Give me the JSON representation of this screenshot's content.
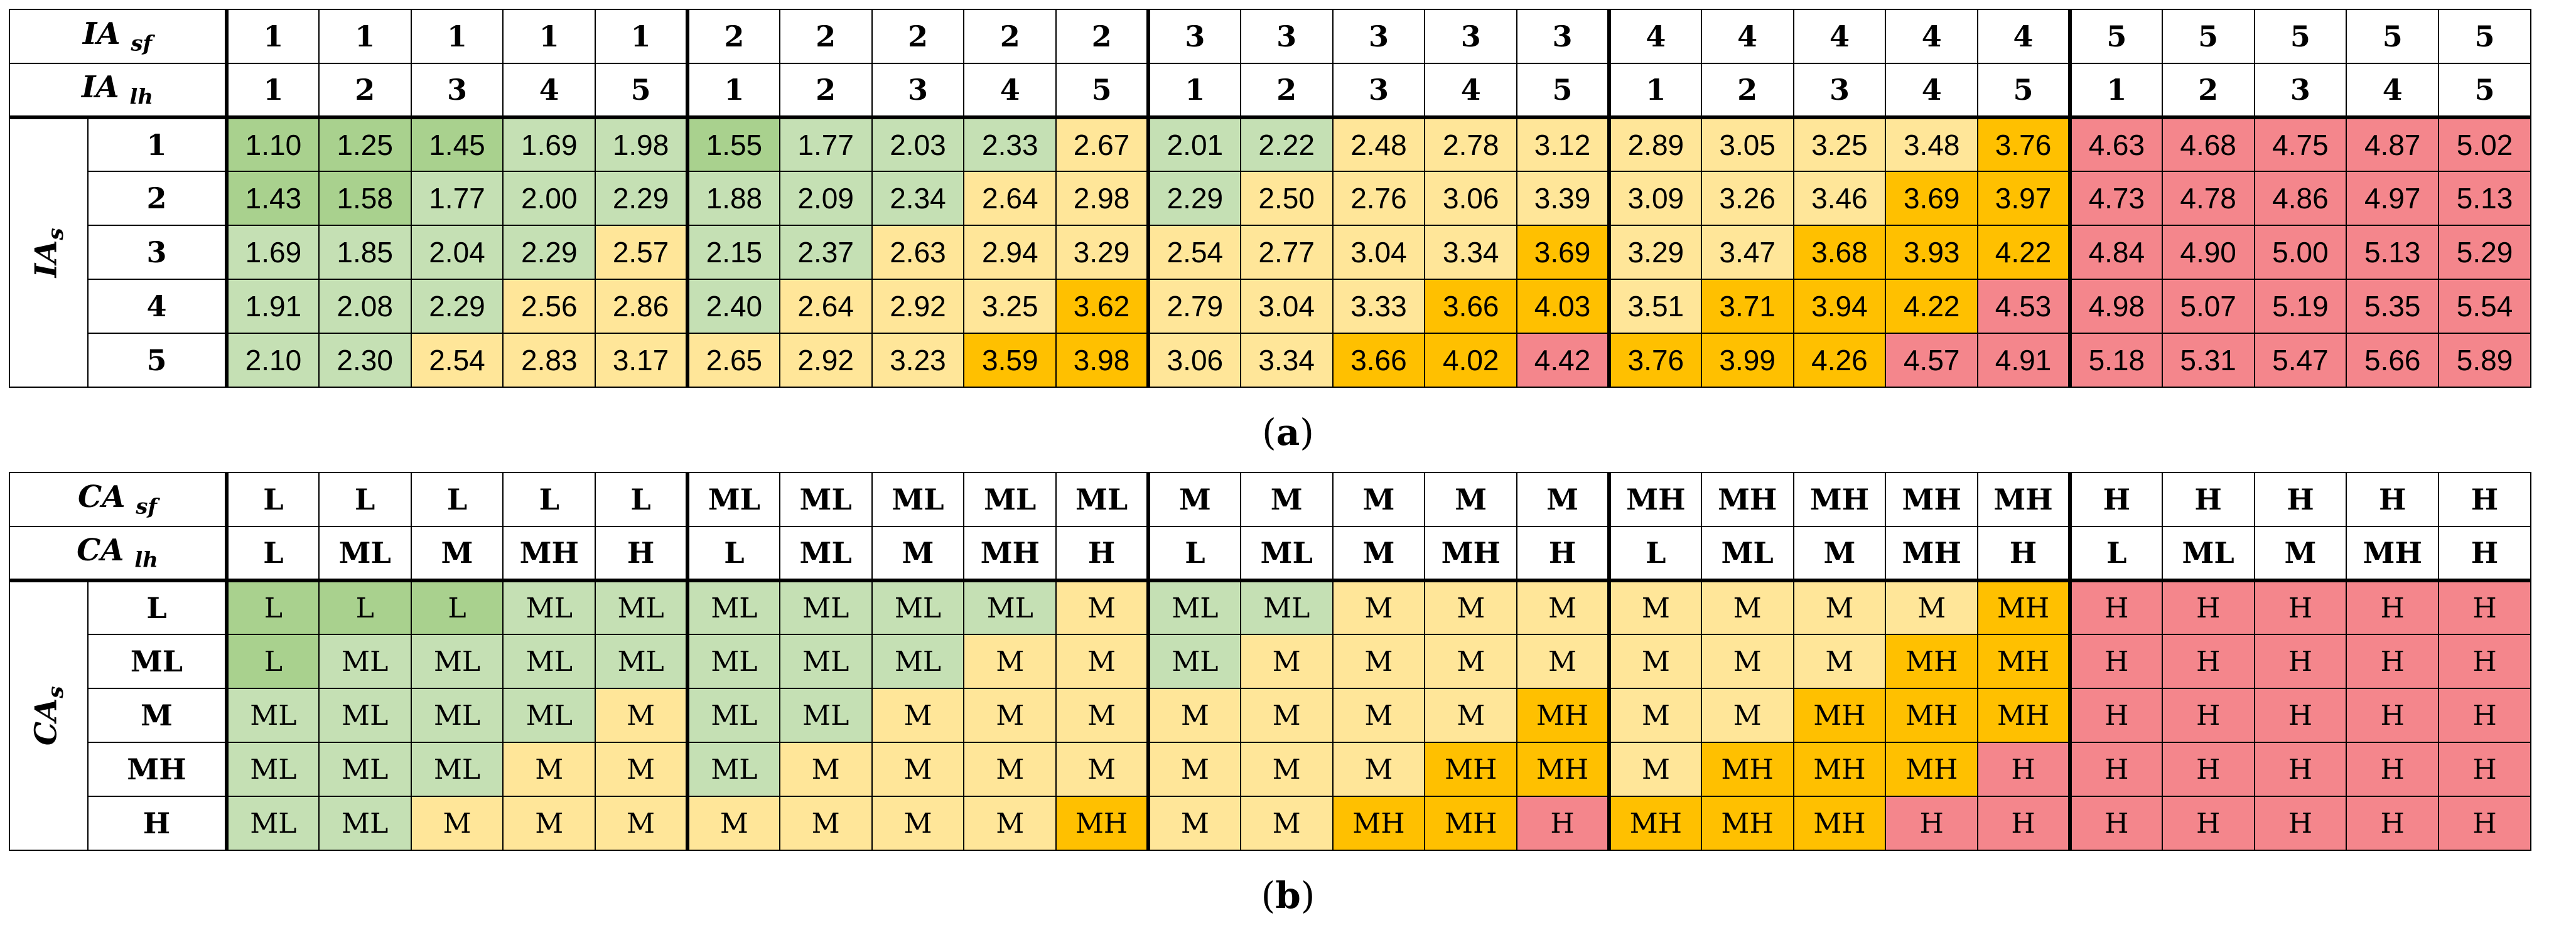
{
  "colors": {
    "dark_green": "#a9d18e",
    "light_green": "#c5e0b4",
    "light_yellow": "#ffe699",
    "orange": "#ffc000",
    "red": "#f4868c"
  },
  "table_a": {
    "caption_letter": "a",
    "sf_label": "IA",
    "sf_sub": "sf",
    "lh_label": "IA",
    "lh_sub": "lh",
    "s_label": "IA",
    "s_sub": "s",
    "sf_values": [
      "1",
      "1",
      "1",
      "1",
      "1",
      "2",
      "2",
      "2",
      "2",
      "2",
      "3",
      "3",
      "3",
      "3",
      "3",
      "4",
      "4",
      "4",
      "4",
      "4",
      "5",
      "5",
      "5",
      "5",
      "5"
    ],
    "lh_values": [
      "1",
      "2",
      "3",
      "4",
      "5",
      "1",
      "2",
      "3",
      "4",
      "5",
      "1",
      "2",
      "3",
      "4",
      "5",
      "1",
      "2",
      "3",
      "4",
      "5",
      "1",
      "2",
      "3",
      "4",
      "5"
    ],
    "rows": [
      {
        "label": "1",
        "values": [
          "1.10",
          "1.25",
          "1.45",
          "1.69",
          "1.98",
          "1.55",
          "1.77",
          "2.03",
          "2.33",
          "2.67",
          "2.01",
          "2.22",
          "2.48",
          "2.78",
          "3.12",
          "2.89",
          "3.05",
          "3.25",
          "3.48",
          "3.76",
          "4.63",
          "4.68",
          "4.75",
          "4.87",
          "5.02"
        ]
      },
      {
        "label": "2",
        "values": [
          "1.43",
          "1.58",
          "1.77",
          "2.00",
          "2.29",
          "1.88",
          "2.09",
          "2.34",
          "2.64",
          "2.98",
          "2.29",
          "2.50",
          "2.76",
          "3.06",
          "3.39",
          "3.09",
          "3.26",
          "3.46",
          "3.69",
          "3.97",
          "4.73",
          "4.78",
          "4.86",
          "4.97",
          "5.13"
        ]
      },
      {
        "label": "3",
        "values": [
          "1.69",
          "1.85",
          "2.04",
          "2.29",
          "2.57",
          "2.15",
          "2.37",
          "2.63",
          "2.94",
          "3.29",
          "2.54",
          "2.77",
          "3.04",
          "3.34",
          "3.69",
          "3.29",
          "3.47",
          "3.68",
          "3.93",
          "4.22",
          "4.84",
          "4.90",
          "5.00",
          "5.13",
          "5.29"
        ]
      },
      {
        "label": "4",
        "values": [
          "1.91",
          "2.08",
          "2.29",
          "2.56",
          "2.86",
          "2.40",
          "2.64",
          "2.92",
          "3.25",
          "3.62",
          "2.79",
          "3.04",
          "3.33",
          "3.66",
          "4.03",
          "3.51",
          "3.71",
          "3.94",
          "4.22",
          "4.53",
          "4.98",
          "5.07",
          "5.19",
          "5.35",
          "5.54"
        ]
      },
      {
        "label": "5",
        "values": [
          "2.10",
          "2.30",
          "2.54",
          "2.83",
          "3.17",
          "2.65",
          "2.92",
          "3.23",
          "3.59",
          "3.98",
          "3.06",
          "3.34",
          "3.66",
          "4.02",
          "4.42",
          "3.76",
          "3.99",
          "4.26",
          "4.57",
          "4.91",
          "5.18",
          "5.31",
          "5.47",
          "5.66",
          "5.89"
        ]
      }
    ],
    "color_keys": [
      [
        "DG",
        "DG",
        "DG",
        "LG",
        "LG",
        "DG",
        "LG",
        "LG",
        "LG",
        "Y",
        "LG",
        "LG",
        "Y",
        "Y",
        "Y",
        "Y",
        "Y",
        "Y",
        "Y",
        "O",
        "R",
        "R",
        "R",
        "R",
        "R"
      ],
      [
        "DG",
        "DG",
        "LG",
        "LG",
        "LG",
        "LG",
        "LG",
        "LG",
        "Y",
        "Y",
        "LG",
        "Y",
        "Y",
        "Y",
        "Y",
        "Y",
        "Y",
        "Y",
        "O",
        "O",
        "R",
        "R",
        "R",
        "R",
        "R"
      ],
      [
        "LG",
        "LG",
        "LG",
        "LG",
        "Y",
        "LG",
        "LG",
        "Y",
        "Y",
        "Y",
        "Y",
        "Y",
        "Y",
        "Y",
        "O",
        "Y",
        "Y",
        "O",
        "O",
        "O",
        "R",
        "R",
        "R",
        "R",
        "R"
      ],
      [
        "LG",
        "LG",
        "LG",
        "Y",
        "Y",
        "LG",
        "Y",
        "Y",
        "Y",
        "O",
        "Y",
        "Y",
        "Y",
        "O",
        "O",
        "Y",
        "O",
        "O",
        "O",
        "R",
        "R",
        "R",
        "R",
        "R",
        "R"
      ],
      [
        "LG",
        "LG",
        "Y",
        "Y",
        "Y",
        "Y",
        "Y",
        "Y",
        "O",
        "O",
        "Y",
        "Y",
        "O",
        "O",
        "R",
        "O",
        "O",
        "O",
        "R",
        "R",
        "R",
        "R",
        "R",
        "R",
        "R"
      ]
    ]
  },
  "table_b": {
    "caption_letter": "b",
    "sf_label": "CA",
    "sf_sub": "sf",
    "lh_label": "CA",
    "lh_sub": "lh",
    "s_label": "CA",
    "s_sub": "s",
    "sf_values": [
      "L",
      "L",
      "L",
      "L",
      "L",
      "ML",
      "ML",
      "ML",
      "ML",
      "ML",
      "M",
      "M",
      "M",
      "M",
      "M",
      "MH",
      "MH",
      "MH",
      "MH",
      "MH",
      "H",
      "H",
      "H",
      "H",
      "H"
    ],
    "lh_values": [
      "L",
      "ML",
      "M",
      "MH",
      "H",
      "L",
      "ML",
      "M",
      "MH",
      "H",
      "L",
      "ML",
      "M",
      "MH",
      "H",
      "L",
      "ML",
      "M",
      "MH",
      "H",
      "L",
      "ML",
      "M",
      "MH",
      "H"
    ],
    "rows": [
      {
        "label": "L",
        "values": [
          "L",
          "L",
          "L",
          "ML",
          "ML",
          "ML",
          "ML",
          "ML",
          "ML",
          "M",
          "ML",
          "ML",
          "M",
          "M",
          "M",
          "M",
          "M",
          "M",
          "M",
          "MH",
          "H",
          "H",
          "H",
          "H",
          "H"
        ]
      },
      {
        "label": "ML",
        "values": [
          "L",
          "ML",
          "ML",
          "ML",
          "ML",
          "ML",
          "ML",
          "ML",
          "M",
          "M",
          "ML",
          "M",
          "M",
          "M",
          "M",
          "M",
          "M",
          "M",
          "MH",
          "MH",
          "H",
          "H",
          "H",
          "H",
          "H"
        ]
      },
      {
        "label": "M",
        "values": [
          "ML",
          "ML",
          "ML",
          "ML",
          "M",
          "ML",
          "ML",
          "M",
          "M",
          "M",
          "M",
          "M",
          "M",
          "M",
          "MH",
          "M",
          "M",
          "MH",
          "MH",
          "MH",
          "H",
          "H",
          "H",
          "H",
          "H"
        ]
      },
      {
        "label": "MH",
        "values": [
          "ML",
          "ML",
          "ML",
          "M",
          "M",
          "ML",
          "M",
          "M",
          "M",
          "M",
          "M",
          "M",
          "M",
          "MH",
          "MH",
          "M",
          "MH",
          "MH",
          "MH",
          "H",
          "H",
          "H",
          "H",
          "H",
          "H"
        ]
      },
      {
        "label": "H",
        "values": [
          "ML",
          "ML",
          "M",
          "M",
          "M",
          "M",
          "M",
          "M",
          "M",
          "MH",
          "M",
          "M",
          "MH",
          "MH",
          "H",
          "MH",
          "MH",
          "MH",
          "H",
          "H",
          "H",
          "H",
          "H",
          "H",
          "H"
        ]
      }
    ],
    "color_keys": [
      [
        "DG",
        "DG",
        "DG",
        "LG",
        "LG",
        "LG",
        "LG",
        "LG",
        "LG",
        "Y",
        "LG",
        "LG",
        "Y",
        "Y",
        "Y",
        "Y",
        "Y",
        "Y",
        "Y",
        "O",
        "R",
        "R",
        "R",
        "R",
        "R"
      ],
      [
        "DG",
        "LG",
        "LG",
        "LG",
        "LG",
        "LG",
        "LG",
        "LG",
        "Y",
        "Y",
        "LG",
        "Y",
        "Y",
        "Y",
        "Y",
        "Y",
        "Y",
        "Y",
        "O",
        "O",
        "R",
        "R",
        "R",
        "R",
        "R"
      ],
      [
        "LG",
        "LG",
        "LG",
        "LG",
        "Y",
        "LG",
        "LG",
        "Y",
        "Y",
        "Y",
        "Y",
        "Y",
        "Y",
        "Y",
        "O",
        "Y",
        "Y",
        "O",
        "O",
        "O",
        "R",
        "R",
        "R",
        "R",
        "R"
      ],
      [
        "LG",
        "LG",
        "LG",
        "Y",
        "Y",
        "LG",
        "Y",
        "Y",
        "Y",
        "Y",
        "Y",
        "Y",
        "Y",
        "O",
        "O",
        "Y",
        "O",
        "O",
        "O",
        "R",
        "R",
        "R",
        "R",
        "R",
        "R"
      ],
      [
        "LG",
        "LG",
        "Y",
        "Y",
        "Y",
        "Y",
        "Y",
        "Y",
        "Y",
        "O",
        "Y",
        "Y",
        "O",
        "O",
        "R",
        "O",
        "O",
        "O",
        "R",
        "R",
        "R",
        "R",
        "R",
        "R",
        "R"
      ]
    ]
  }
}
